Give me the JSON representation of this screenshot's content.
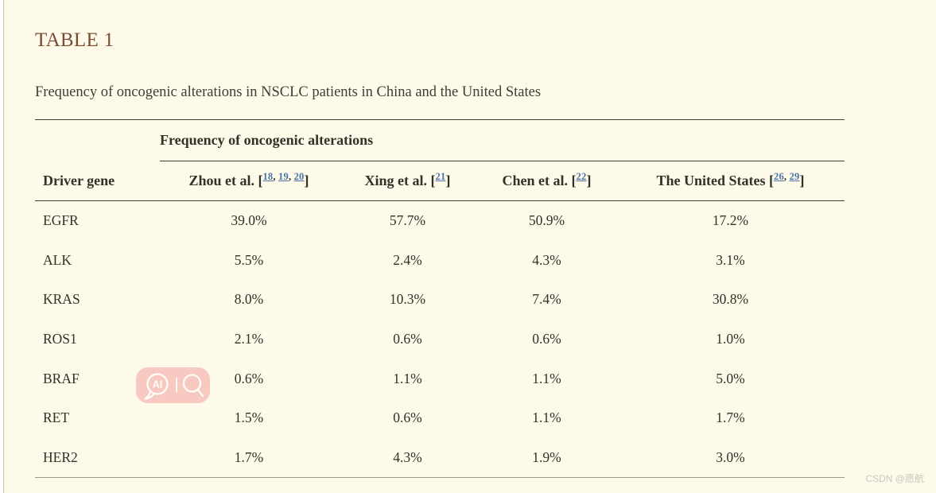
{
  "page": {
    "title": "TABLE 1",
    "caption": "Frequency of oncogenic alterations in NSCLC patients in China and the United States",
    "watermark": "CSDN @愿航"
  },
  "table": {
    "spanner_header": "Frequency of oncogenic alterations",
    "columns": [
      {
        "label": "Driver gene",
        "refs": []
      },
      {
        "label": "Zhou et al.",
        "refs": [
          "18",
          "19",
          "20"
        ]
      },
      {
        "label": "Xing et al.",
        "refs": [
          "21"
        ]
      },
      {
        "label": "Chen et al.",
        "refs": [
          "22"
        ]
      },
      {
        "label": "The United States",
        "refs": [
          "26",
          "29"
        ]
      }
    ],
    "rows": [
      {
        "gene": "EGFR",
        "values": [
          "39.0%",
          "57.7%",
          "50.9%",
          "17.2%"
        ]
      },
      {
        "gene": "ALK",
        "values": [
          "5.5%",
          "2.4%",
          "4.3%",
          "3.1%"
        ]
      },
      {
        "gene": "KRAS",
        "values": [
          "8.0%",
          "10.3%",
          "7.4%",
          "30.8%"
        ]
      },
      {
        "gene": "ROS1",
        "values": [
          "2.1%",
          "0.6%",
          "0.6%",
          "1.0%"
        ]
      },
      {
        "gene": "BRAF",
        "values": [
          "0.6%",
          "1.1%",
          "1.1%",
          "5.0%"
        ]
      },
      {
        "gene": "RET",
        "values": [
          "1.5%",
          "0.6%",
          "1.1%",
          "1.7%"
        ]
      },
      {
        "gene": "HER2",
        "values": [
          "1.7%",
          "4.3%",
          "1.9%",
          "3.0%"
        ]
      }
    ]
  },
  "ai_badge": {
    "label": "AI"
  },
  "colors": {
    "background": "#fdfaea",
    "title": "#7a4a33",
    "text": "#32312a",
    "rule_dark": "#403f36",
    "rule_light": "#9b9a8f",
    "link_blue": "#4a73a8",
    "badge_pink": "#f8c9c0",
    "watermark_gray": "#c9c7c1",
    "left_edge_line": "#dcc0aa"
  }
}
